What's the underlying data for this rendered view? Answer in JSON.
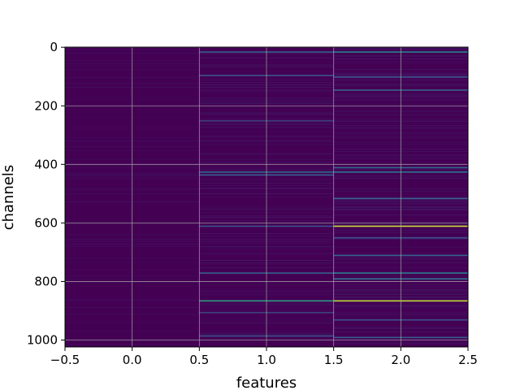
{
  "chart_data": {
    "type": "heatmap",
    "title": "",
    "xlabel": "features",
    "ylabel": "channels",
    "xlim": [
      -0.5,
      2.5
    ],
    "ylim": [
      1023.5,
      -0.5
    ],
    "x_ticks": [
      "−0.5",
      "0.0",
      "0.5",
      "1.0",
      "1.5",
      "2.0",
      "2.5"
    ],
    "x_tick_values": [
      -0.5,
      0.0,
      0.5,
      1.0,
      1.5,
      2.0,
      2.5
    ],
    "y_ticks": [
      "0",
      "200",
      "400",
      "600",
      "800",
      "1000"
    ],
    "y_tick_values": [
      0,
      200,
      400,
      600,
      800,
      1000
    ],
    "grid": true,
    "colormap": "viridis",
    "background_color": "#440154",
    "columns": [
      {
        "feature": 0,
        "highlights": []
      },
      {
        "feature": 1,
        "highlights": [
          {
            "channel": 15,
            "value": 0.3
          },
          {
            "channel": 95,
            "value": 0.25
          },
          {
            "channel": 250,
            "value": 0.2
          },
          {
            "channel": 425,
            "value": 0.35
          },
          {
            "channel": 435,
            "value": 0.3
          },
          {
            "channel": 610,
            "value": 0.25
          },
          {
            "channel": 770,
            "value": 0.3
          },
          {
            "channel": 865,
            "value": 0.55
          },
          {
            "channel": 905,
            "value": 0.2
          },
          {
            "channel": 985,
            "value": 0.25
          }
        ]
      },
      {
        "feature": 2,
        "highlights": [
          {
            "channel": 15,
            "value": 0.45
          },
          {
            "channel": 100,
            "value": 0.25
          },
          {
            "channel": 145,
            "value": 0.3
          },
          {
            "channel": 410,
            "value": 0.35
          },
          {
            "channel": 425,
            "value": 0.4
          },
          {
            "channel": 515,
            "value": 0.3
          },
          {
            "channel": 610,
            "value": 0.92
          },
          {
            "channel": 650,
            "value": 0.25
          },
          {
            "channel": 710,
            "value": 0.3
          },
          {
            "channel": 770,
            "value": 0.4
          },
          {
            "channel": 790,
            "value": 0.35
          },
          {
            "channel": 865,
            "value": 0.9
          },
          {
            "channel": 930,
            "value": 0.25
          },
          {
            "channel": 990,
            "value": 0.3
          }
        ]
      }
    ]
  }
}
